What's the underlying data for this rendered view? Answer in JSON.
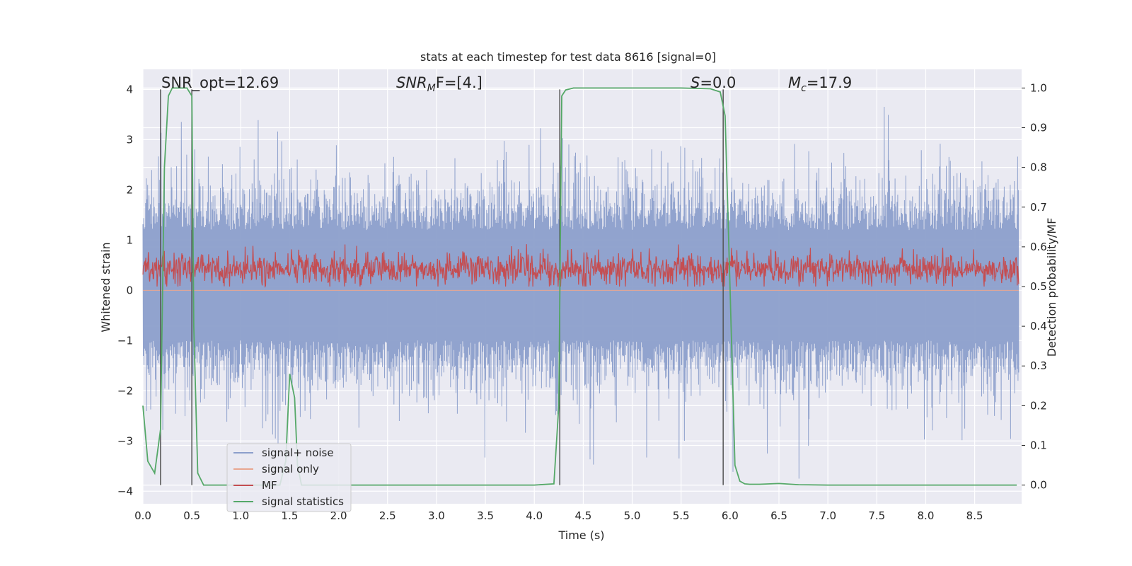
{
  "chart_data": {
    "type": "line",
    "title": "stats at each timestep for test data 8616 [signal=0]",
    "xlabel": "Time (s)",
    "ylabel_left": "Whitened strain",
    "ylabel_right": "Detection probability/MF",
    "xlim": [
      0.0,
      8.98
    ],
    "ylim_left": [
      -4.25,
      4.4
    ],
    "ylim_right": [
      -0.047,
      1.047
    ],
    "x_ticks": [
      "0.0",
      "0.5",
      "1.0",
      "1.5",
      "2.0",
      "2.5",
      "3.0",
      "3.5",
      "4.0",
      "4.5",
      "5.0",
      "5.5",
      "6.0",
      "6.5",
      "7.0",
      "7.5",
      "8.0",
      "8.5"
    ],
    "y_ticks_left": [
      "-4",
      "-3",
      "-2",
      "-1",
      "0",
      "1",
      "2",
      "3",
      "4"
    ],
    "y_ticks_right": [
      "0.0",
      "0.1",
      "0.2",
      "0.3",
      "0.4",
      "0.5",
      "0.6",
      "0.7",
      "0.8",
      "0.9",
      "1.0"
    ],
    "grid": true,
    "legend_position": "lower-left",
    "annotations": {
      "snr_opt_label": "SNR_opt=12.69",
      "snr_mf_label": "SNR",
      "snr_mf_sub": "M",
      "snr_mf_rest": "F=[4.]",
      "s_label": "S",
      "s_rest": "=0.0",
      "mc_label": "M",
      "mc_sub": "c",
      "mc_rest": "=17.9"
    },
    "series": [
      {
        "name": "signal+ noise",
        "color": "#8c9fcb",
        "description_kind": "noise",
        "upper_envelope": [
          1.6,
          3.4
        ],
        "lower_envelope": [
          -1.5,
          -3.3
        ]
      },
      {
        "name": "signal only",
        "color": "#e8a690",
        "values_constant": 0.0
      },
      {
        "name": "MF",
        "color": "#c44e52",
        "range": [
          0.5,
          0.62
        ],
        "mean": 0.545
      },
      {
        "name": "signal statistics",
        "color": "#55a868",
        "x": [
          0.0,
          0.05,
          0.12,
          0.18,
          0.22,
          0.26,
          0.3,
          0.4,
          0.45,
          0.5,
          0.52,
          0.56,
          0.62,
          0.75,
          1.0,
          1.2,
          1.4,
          1.46,
          1.5,
          1.55,
          1.58,
          1.62,
          1.8,
          2.0,
          3.0,
          4.0,
          4.2,
          4.25,
          4.28,
          4.32,
          4.4,
          5.0,
          5.5,
          5.8,
          5.9,
          5.95,
          6.0,
          6.05,
          6.1,
          6.15,
          6.2,
          6.3,
          6.5,
          6.7,
          7.0,
          8.0,
          8.93
        ],
        "y": [
          0.2,
          0.06,
          0.03,
          0.14,
          0.8,
          0.98,
          1.0,
          1.0,
          1.0,
          0.98,
          0.4,
          0.03,
          0.0,
          0.0,
          0.0,
          0.0,
          0.0,
          0.06,
          0.28,
          0.22,
          0.05,
          0.0,
          0.0,
          0.0,
          0.0,
          0.0,
          0.003,
          0.2,
          0.98,
          0.995,
          1.0,
          1.0,
          1.0,
          0.998,
          0.99,
          0.93,
          0.5,
          0.05,
          0.01,
          0.003,
          0.002,
          0.002,
          0.004,
          0.001,
          0.0,
          0.0,
          0.0
        ]
      }
    ],
    "vertical_markers_x": [
      0.18,
      0.5,
      4.26,
      5.93
    ]
  }
}
